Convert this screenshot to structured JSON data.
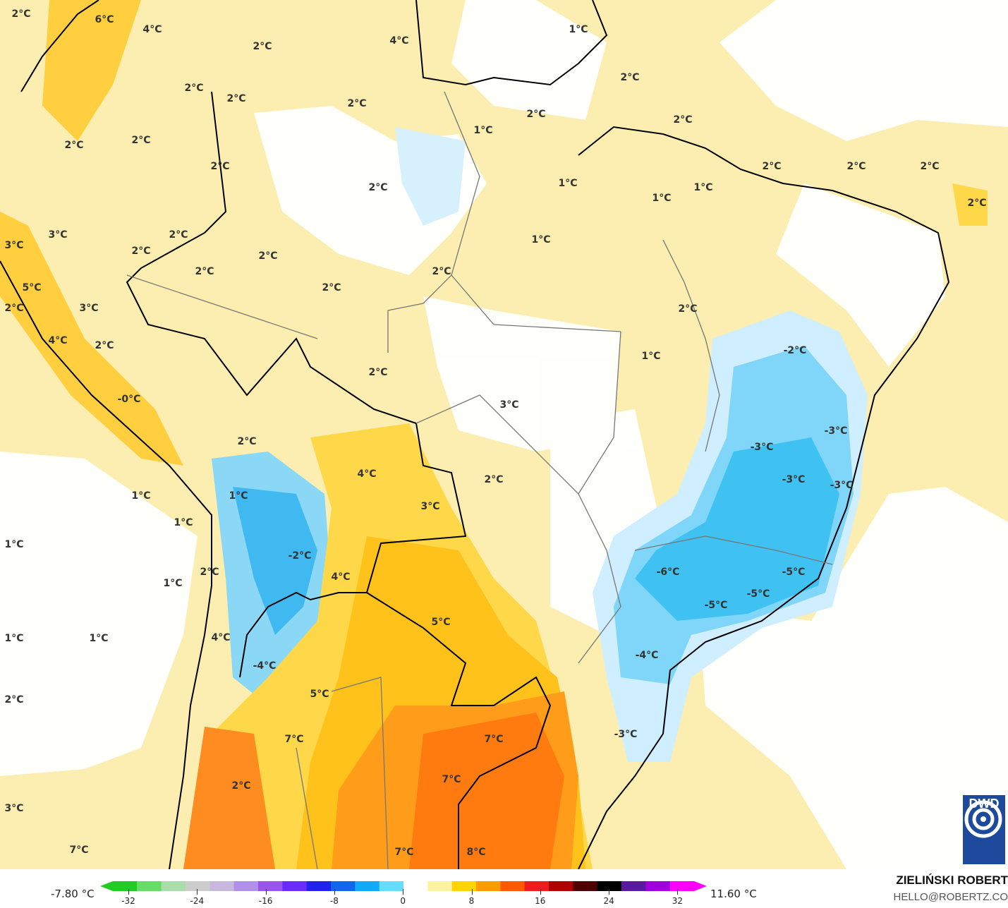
{
  "map": {
    "labels": [
      "2°C",
      "6°C",
      "4°C",
      "2°C",
      "4°C",
      "1°C",
      "2°C",
      "2°C",
      "2°C",
      "2°C",
      "2°C",
      "2°C",
      "2°C",
      "1°C",
      "2°C",
      "2°C",
      "2°C",
      "2°C",
      "1°C",
      "1°C",
      "1°C",
      "2°C",
      "2°C",
      "2°C",
      "2°C",
      "3°C",
      "2°C",
      "2°C",
      "2°C",
      "2°C",
      "1°C",
      "3°C",
      "5°C",
      "2°C",
      "3°C",
      "2°C",
      "2°C",
      "4°C",
      "2°C",
      "2°C",
      "1°C",
      "-2°C",
      "-3°C",
      "-3°C",
      "-3°C",
      "-3°C",
      "3°C",
      "2°C",
      "4°C",
      "3°C",
      "1°C",
      "2°C",
      "1°C",
      "1°C",
      "1°C",
      "-2°C",
      "4°C",
      "5°C",
      "-6°C",
      "-5°C",
      "-5°C",
      "-5°C",
      "-4°C",
      "4°C",
      "-4°C",
      "1°C",
      "1°C",
      "1°C",
      "5°C",
      "2°C",
      "7°C",
      "7°C",
      "7°C",
      "-3°C",
      "3°C",
      "7°C",
      "2°C",
      "7°C",
      "8°C",
      "2°C",
      "-0°C"
    ]
  },
  "legend": {
    "min_label": "-7.80 °C",
    "max_label": "11.60 °C",
    "ticks": [
      "-32",
      "-24",
      "-16",
      "-8",
      "0",
      "8",
      "16",
      "24",
      "32"
    ],
    "colors": [
      "#22cc22",
      "#66dd66",
      "#aaddaa",
      "#cccccc",
      "#c8b8e0",
      "#b090e8",
      "#9955ee",
      "#6a2bff",
      "#2222ee",
      "#1166ee",
      "#11aaff",
      "#66ddff",
      "#ffffff",
      "#fff2a0",
      "#ffd400",
      "#ff9d00",
      "#ff5a00",
      "#ee1c1c",
      "#b00000",
      "#500000",
      "#000000",
      "#5a1aa0",
      "#a000dd",
      "#ff00ff"
    ]
  },
  "credits": {
    "author": "ZIELIŃSKI ROBERT",
    "email": "HELLO@ROBERTZ.CO",
    "logo": "DWD"
  }
}
